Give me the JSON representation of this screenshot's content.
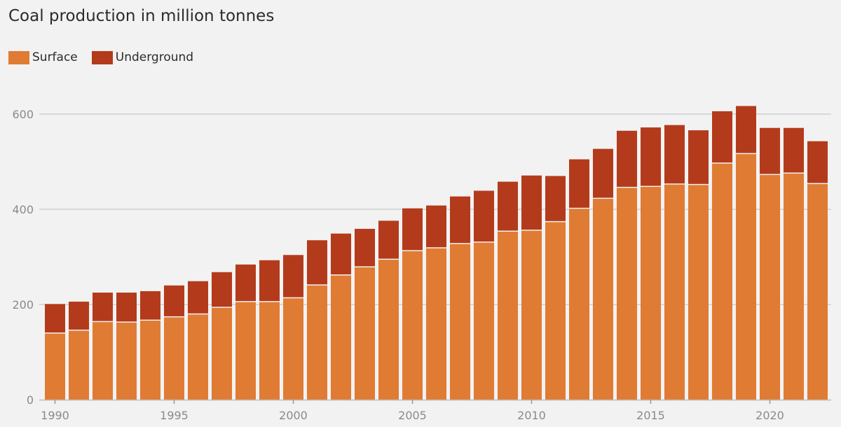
{
  "chart_data": {
    "type": "bar",
    "stacked": true,
    "title": "Coal production in million tonnes",
    "x": [
      1990,
      1991,
      1992,
      1993,
      1994,
      1995,
      1996,
      1997,
      1998,
      1999,
      2000,
      2001,
      2002,
      2003,
      2004,
      2005,
      2006,
      2007,
      2008,
      2009,
      2010,
      2011,
      2012,
      2013,
      2014,
      2015,
      2016,
      2017,
      2018,
      2019,
      2020,
      2021,
      2022
    ],
    "series": [
      {
        "name": "Surface",
        "color": "#e07b33",
        "values": [
          139,
          145,
          163,
          162,
          166,
          173,
          179,
          193,
          205,
          205,
          213,
          240,
          261,
          278,
          294,
          312,
          318,
          327,
          330,
          353,
          355,
          373,
          401,
          422,
          445,
          447,
          452,
          451,
          496,
          516,
          472,
          475,
          453
        ]
      },
      {
        "name": "Underground",
        "color": "#b33b1c",
        "values": [
          62,
          61,
          62,
          63,
          62,
          67,
          70,
          75,
          79,
          88,
          91,
          95,
          88,
          81,
          82,
          90,
          90,
          100,
          109,
          105,
          116,
          97,
          104,
          105,
          120,
          125,
          125,
          115,
          110,
          101,
          99,
          96,
          90
        ]
      }
    ],
    "ylim": [
      0,
      640
    ],
    "yticks": [
      0,
      200,
      400,
      600
    ],
    "xticks": [
      1990,
      1995,
      2000,
      2005,
      2010,
      2015,
      2020
    ],
    "xlabel": "",
    "ylabel": "",
    "grid": true,
    "legend_position": "top-left"
  }
}
